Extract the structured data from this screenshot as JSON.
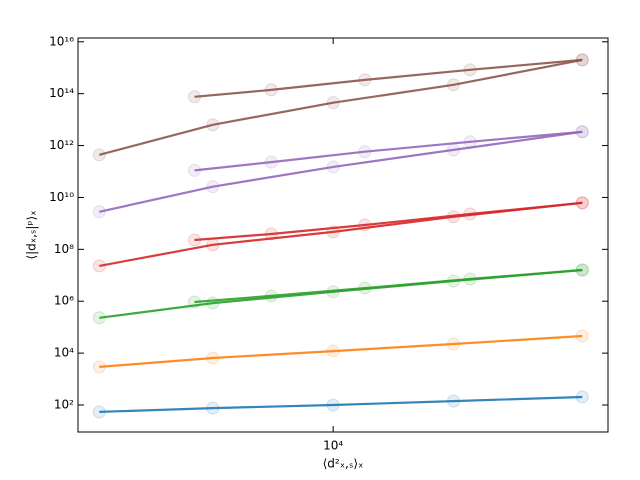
{
  "chart_data": {
    "type": "line",
    "x_label": "⟨d²ₓ,ₛ⟩ₓ",
    "y_label": "⟨|dₓ,ₛ|ᵖ⟩ₓ",
    "x_scale": "log",
    "y_scale": "log",
    "xlim": [
      2300,
      48700
    ],
    "ylim": [
      9.1,
      1.4e+16
    ],
    "xticks": [
      {
        "value": 10000,
        "label": "10⁴"
      }
    ],
    "yticks": [
      {
        "value": 100,
        "label": "10²"
      },
      {
        "value": 10000,
        "label": "10⁴"
      },
      {
        "value": 1000000,
        "label": "10⁶"
      },
      {
        "value": 100000000,
        "label": "10⁸"
      },
      {
        "value": 10000000000,
        "label": "10¹⁰"
      },
      {
        "value": 1000000000000,
        "label": "10¹²"
      },
      {
        "value": 100000000000000,
        "label": "10¹⁴"
      },
      {
        "value": 10000000000000000,
        "label": "10¹⁶"
      }
    ],
    "series": [
      {
        "color": "#1f77b4",
        "x": [
          2600,
          5000,
          10000,
          20000,
          42000
        ],
        "values": [
          54,
          76,
          100,
          141,
          204
        ]
      },
      {
        "color": "#ff7f0e",
        "x": [
          2600,
          5000,
          10000,
          20000,
          42000
        ],
        "values": [
          2950,
          6460,
          12000,
          22400,
          45700
        ]
      },
      {
        "color": "#2ca02c",
        "x": [
          2600,
          5000,
          10000,
          20000,
          42000
        ],
        "values": [
          230000,
          850000,
          2300000,
          6000000,
          16000000
        ]
      },
      {
        "color": "#2ca02c",
        "x": [
          4500,
          7000,
          12000,
          22000,
          42000
        ],
        "values": [
          930000,
          1600000,
          3200000,
          7200000,
          16000000
        ]
      },
      {
        "color": "#d62728",
        "x": [
          2600,
          5000,
          10000,
          20000,
          42000
        ],
        "values": [
          23000000,
          150000000,
          470000000,
          1800000000,
          6200000000
        ]
      },
      {
        "color": "#d62728",
        "x": [
          4500,
          7000,
          12000,
          22000,
          42000
        ],
        "values": [
          230000000,
          390000000,
          870000000,
          2300000000,
          6200000000
        ]
      },
      {
        "color": "#9467bd",
        "x": [
          2600,
          5000,
          10000,
          20000,
          42000
        ],
        "values": [
          2800000000.0,
          26000000000.0,
          150000000000.0,
          680000000000.0,
          3400000000000.0
        ]
      },
      {
        "color": "#9467bd",
        "x": [
          4500,
          7000,
          12000,
          22000,
          42000
        ],
        "values": [
          110000000000.0,
          230000000000.0,
          580000000000.0,
          1400000000000.0,
          3400000000000.0
        ]
      },
      {
        "color": "#8c564b",
        "x": [
          2600,
          5000,
          10000,
          20000,
          42000
        ],
        "values": [
          440000000000.0,
          6300000000000.0,
          45000000000000.0,
          220000000000000.0,
          2000000000000000.0
        ]
      },
      {
        "color": "#8c564b",
        "x": [
          4500,
          7000,
          12000,
          22000,
          42000
        ],
        "values": [
          76000000000000.0,
          140000000000000.0,
          340000000000000.0,
          830000000000000.0,
          2000000000000000.0
        ]
      }
    ]
  }
}
